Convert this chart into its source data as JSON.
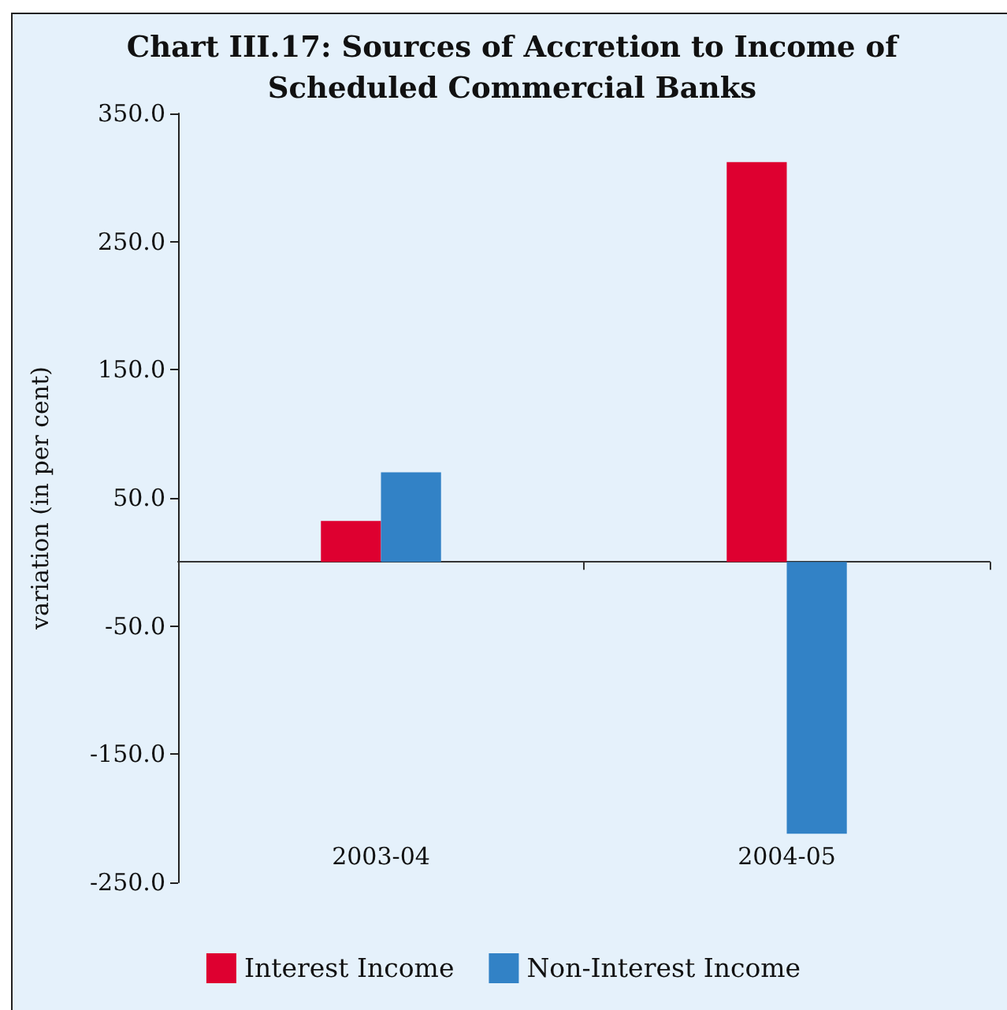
{
  "chart_data": {
    "type": "bar",
    "title": "Chart III.17: Sources of Accretion to Income of Scheduled Commercial Banks",
    "ylabel": "variation (in per cent)",
    "categories": [
      "2003-04",
      "2004-05"
    ],
    "series": [
      {
        "name": "Interest Income",
        "color": "#de0030",
        "values": [
          32,
          312
        ]
      },
      {
        "name": "Non-Interest Income",
        "color": "#3282c6",
        "values": [
          70,
          -212
        ]
      }
    ],
    "ylim": [
      -250,
      350
    ],
    "yticks": [
      {
        "value": 350,
        "label": "350.0"
      },
      {
        "value": 250,
        "label": "250.0"
      },
      {
        "value": 150,
        "label": "150.0"
      },
      {
        "value": 50,
        "label": "50.0"
      },
      {
        "value": -50,
        "label": "-50.0"
      },
      {
        "value": -150,
        "label": "-150.0"
      },
      {
        "value": -250,
        "label": "-250.0"
      }
    ],
    "legend": "bottom"
  }
}
